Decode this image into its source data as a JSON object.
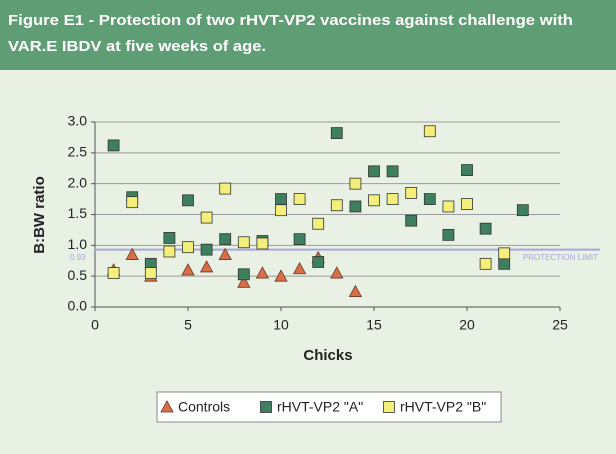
{
  "chart_data": {
    "type": "scatter",
    "title": [
      "Figure E1 - Protection of two rHVT-VP2 vaccines against challenge with",
      "VAR.E IBDV at five weeks of age."
    ],
    "xlabel": "Chicks",
    "ylabel": "B:BW ratio",
    "xlim": [
      0,
      25
    ],
    "xticks": [
      0,
      5,
      10,
      15,
      20,
      25
    ],
    "ylim": [
      0,
      3
    ],
    "yticks": [
      {
        "value": 0,
        "label": "0.0"
      },
      0.5,
      {
        "value": 1,
        "label": "1.0"
      },
      1.5,
      {
        "value": 2,
        "label": "2.0"
      },
      2.5,
      {
        "value": 3,
        "label": "3.0"
      }
    ],
    "grid": true,
    "legend": "bottom",
    "protection_limit": {
      "value": 0.93,
      "label": "PROTECTION LIMIT",
      "color": "#a9a6dc"
    },
    "series": [
      {
        "name": "Controls",
        "marker": "triangle",
        "color": "#d96f4a",
        "x": [
          1,
          2,
          3,
          5,
          6,
          7,
          8,
          9,
          10,
          11,
          12,
          13,
          14
        ],
        "values": [
          0.6,
          0.85,
          0.5,
          0.6,
          0.65,
          0.85,
          0.4,
          0.55,
          0.5,
          0.62,
          0.8,
          0.55,
          0.25
        ]
      },
      {
        "name": "rHVT-VP2 \"A\"",
        "marker": "square",
        "color": "#3e7f5f",
        "x": [
          1,
          2,
          3,
          4,
          5,
          6,
          7,
          8,
          9,
          10,
          11,
          12,
          13,
          14,
          15,
          16,
          17,
          18,
          19,
          20,
          21,
          22,
          23
        ],
        "values": [
          2.62,
          1.78,
          0.7,
          1.12,
          1.73,
          0.93,
          1.1,
          0.53,
          1.07,
          1.75,
          1.1,
          0.73,
          2.82,
          1.63,
          2.2,
          2.2,
          1.4,
          1.75,
          1.17,
          2.22,
          1.27,
          0.7,
          1.57
        ]
      },
      {
        "name": "rHVT-VP2 \"B\"",
        "marker": "square",
        "color": "#f3ef7a",
        "x": [
          1,
          2,
          3,
          4,
          5,
          6,
          7,
          8,
          9,
          10,
          11,
          12,
          13,
          14,
          15,
          16,
          17,
          18,
          19,
          20,
          21,
          22
        ],
        "values": [
          0.55,
          1.7,
          0.55,
          0.9,
          0.97,
          1.45,
          1.92,
          1.05,
          1.03,
          1.57,
          1.75,
          1.35,
          1.65,
          2.0,
          1.73,
          1.75,
          1.85,
          2.85,
          1.63,
          1.67,
          0.7,
          0.87
        ]
      }
    ]
  }
}
